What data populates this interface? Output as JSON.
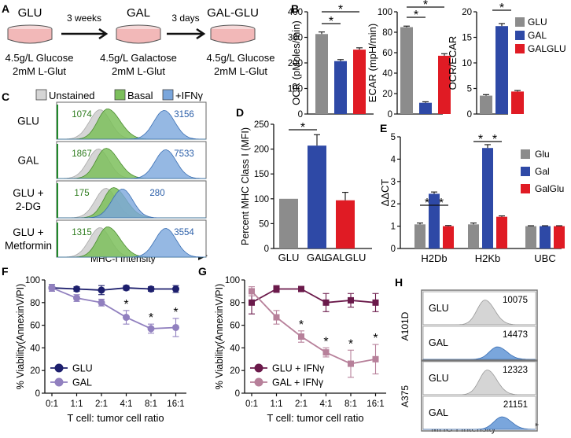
{
  "panel_letters": [
    "A",
    "B",
    "C",
    "D",
    "E",
    "F",
    "G",
    "H"
  ],
  "panel_a": {
    "dishes": [
      {
        "name": "GLU",
        "medium": [
          "4.5g/L Glucose",
          "2mM L-Glut"
        ]
      },
      {
        "name": "GAL",
        "medium": [
          "4.5g/L Galactose",
          "2mM L-Glut"
        ]
      },
      {
        "name": "GAL-GLU",
        "medium": [
          "4.5g/L Glucose",
          "2mM L-Glut"
        ]
      }
    ],
    "steps": [
      "3 weeks",
      "3 days"
    ]
  },
  "colors": {
    "glu": "#8c8c8c",
    "gal": "#2e49a6",
    "galglu": "#e01b24",
    "navy": "#1d1f6d",
    "lavender": "#9180bf",
    "plum": "#6b1a4b",
    "mauve": "#b7809a",
    "unstained": "#d5d5d5",
    "basal": "#7cbf5c",
    "ifng": "#7aa6dc",
    "overlap": "#1aa6a0"
  },
  "panel_c": {
    "legend": [
      "Unstained",
      "Basal",
      "+IFNγ"
    ],
    "rows": [
      {
        "label": [
          "GLU"
        ],
        "basal_mfi": "1074",
        "ifng_mfi": "3156",
        "basal_peak": 0.34,
        "ifng_peak": 0.72
      },
      {
        "label": [
          "GAL"
        ],
        "basal_mfi": "1867",
        "ifng_mfi": "7533",
        "basal_peak": 0.33,
        "ifng_peak": 0.73
      },
      {
        "label": [
          "GLU +",
          "2-DG"
        ],
        "basal_mfi": "175",
        "ifng_mfi": "280",
        "basal_peak": 0.38,
        "ifng_peak": 0.44
      },
      {
        "label": [
          "GLU +",
          "Metformin"
        ],
        "basal_mfi": "1315",
        "ifng_mfi": "3554",
        "basal_peak": 0.34,
        "ifng_peak": 0.73
      }
    ],
    "xlabel": "MHC-I Intensity"
  },
  "chart_data": [
    {
      "panel": "B",
      "type": "bar",
      "ylabel": "OCR (pMoles/min)",
      "ylim": [
        0,
        400
      ],
      "yticks": [
        0,
        100,
        200,
        300,
        400
      ],
      "categories": [
        "GLU",
        "GAL",
        "GALGLU"
      ],
      "values": [
        313,
        207,
        252
      ],
      "errors": [
        8,
        6,
        7
      ],
      "sig": [
        {
          "from": 0,
          "to": 1,
          "label": "*"
        },
        {
          "from": 0,
          "to": 2,
          "label": "*"
        }
      ]
    },
    {
      "panel": "B",
      "type": "bar",
      "ylabel": "ECAR (mpH/min)",
      "ylim": [
        0,
        100
      ],
      "yticks": [
        0,
        20,
        40,
        60,
        80,
        100
      ],
      "categories": [
        "GLU",
        "GAL",
        "GALGLU"
      ],
      "values": [
        85,
        11,
        57
      ],
      "errors": [
        1,
        1,
        2
      ],
      "sig": [
        {
          "from": 0,
          "to": 1,
          "label": "*"
        },
        {
          "from": 0,
          "to": 2,
          "label": "*"
        }
      ]
    },
    {
      "panel": "B",
      "type": "bar",
      "ylabel": "OCR/ECAR",
      "ylim": [
        0,
        20
      ],
      "yticks": [
        0,
        5,
        10,
        15,
        20
      ],
      "categories": [
        "GLU",
        "GAL",
        "GALGLU"
      ],
      "values": [
        3.6,
        17.2,
        4.4
      ],
      "errors": [
        0.2,
        0.5,
        0.2
      ],
      "legend": [
        "GLU",
        "GAL",
        "GALGLU"
      ],
      "sig": [
        {
          "from": 1,
          "to": 1,
          "label": "*"
        }
      ]
    },
    {
      "panel": "D",
      "type": "bar",
      "ylabel": "Percent MHC Class I (MFI)",
      "ylim": [
        0,
        250
      ],
      "yticks": [
        0,
        50,
        100,
        150,
        200,
        250
      ],
      "categories": [
        "GLU",
        "GAL",
        "GALGLU"
      ],
      "values": [
        100,
        207,
        97
      ],
      "errors": [
        0,
        22,
        16
      ],
      "sig": [
        {
          "from": 0,
          "to": 1,
          "label": "*"
        }
      ]
    },
    {
      "panel": "E",
      "type": "bar",
      "ylabel": "ΔΔCT",
      "ylim": [
        0,
        5
      ],
      "yticks": [
        0,
        1,
        2,
        3,
        4,
        5
      ],
      "categories": [
        "H2Db",
        "H2Kb",
        "UBC"
      ],
      "legend": [
        "Glu",
        "Gal",
        "GalGlu"
      ],
      "series": [
        {
          "name": "Glu",
          "values": [
            1.08,
            1.08,
            1.0
          ],
          "errors": [
            0.06,
            0.06,
            0.02
          ]
        },
        {
          "name": "Gal",
          "values": [
            2.45,
            4.5,
            1.0
          ],
          "errors": [
            0.08,
            0.15,
            0.02
          ]
        },
        {
          "name": "GalGlu",
          "values": [
            1.0,
            1.42,
            1.0
          ],
          "errors": [
            0.03,
            0.04,
            0.02
          ]
        }
      ],
      "sig": [
        {
          "group": 0,
          "from": 0,
          "to": 1,
          "label": "*"
        },
        {
          "group": 0,
          "from": 1,
          "to": 2,
          "label": "*"
        },
        {
          "group": 1,
          "from": 0,
          "to": 1,
          "label": "*"
        },
        {
          "group": 1,
          "from": 1,
          "to": 2,
          "label": "*"
        }
      ]
    },
    {
      "panel": "F",
      "type": "line",
      "ylabel": "% Viability(AnnexinV/PI)",
      "xlabel": "T cell: tumor cell ratio",
      "ylim": [
        0,
        100
      ],
      "yticks": [
        0,
        20,
        40,
        60,
        80,
        100
      ],
      "categories": [
        "0:1",
        "1:1",
        "2:1",
        "4:1",
        "8:1",
        "16:1"
      ],
      "series": [
        {
          "name": "GLU",
          "values": [
            93,
            92,
            91,
            93,
            92,
            92
          ],
          "errors": [
            3,
            2,
            4,
            2,
            2,
            3
          ]
        },
        {
          "name": "GAL",
          "values": [
            93,
            84,
            80,
            67,
            57,
            58
          ],
          "errors": [
            3,
            3,
            3,
            6,
            4,
            8
          ]
        }
      ],
      "stars": [
        3,
        4,
        5
      ]
    },
    {
      "panel": "G",
      "type": "line",
      "ylabel": "% Viability(AnnexinV/PI)",
      "xlabel": "T cell: tumor cell ratio",
      "ylim": [
        0,
        100
      ],
      "yticks": [
        0,
        20,
        40,
        60,
        80,
        100
      ],
      "categories": [
        "0:1",
        "1:1",
        "2:1",
        "4:1",
        "8:1",
        "16:1"
      ],
      "series": [
        {
          "name": "GLU + IFNγ",
          "values": [
            80,
            92,
            92,
            80,
            82,
            80
          ],
          "errors": [
            10,
            3,
            2,
            8,
            6,
            8
          ]
        },
        {
          "name": "GAL + IFNγ",
          "values": [
            90,
            67,
            50,
            36,
            26,
            30
          ],
          "errors": [
            4,
            6,
            5,
            4,
            12,
            13
          ]
        }
      ],
      "stars": [
        2,
        3,
        4,
        5
      ]
    }
  ],
  "panel_h": {
    "groups": [
      {
        "cell_line": "A101D",
        "rows": [
          {
            "label": "GLU",
            "mfi": "10075",
            "peak": 0.55
          },
          {
            "label": "GAL",
            "mfi": "14473",
            "peak": 0.66
          }
        ]
      },
      {
        "cell_line": "A375",
        "rows": [
          {
            "label": "GLU",
            "mfi": "12323",
            "peak": 0.57
          },
          {
            "label": "GAL",
            "mfi": "21151",
            "peak": 0.7
          }
        ]
      }
    ],
    "xlabel": "MHC-I Intensity"
  }
}
